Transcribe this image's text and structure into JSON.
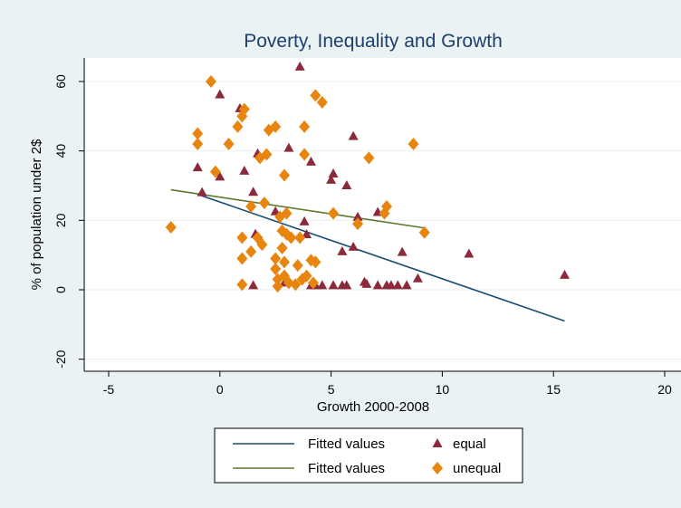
{
  "chart_data": {
    "type": "scatter",
    "title": "Poverty, Inequality and Growth",
    "xlabel": "Growth 2000-2008",
    "ylabel": "% of population under 2$",
    "xlim": [
      -5,
      20
    ],
    "ylim": [
      -20,
      65
    ],
    "xticks": [
      -5,
      0,
      5,
      10,
      15,
      20
    ],
    "yticks": [
      -20,
      0,
      20,
      40,
      60
    ],
    "grid": "horizontal",
    "legend_position": "bottom",
    "colors": {
      "background": "#eaf2f3",
      "plot_area": "#ffffff",
      "equal": "#8c2a3b",
      "unequal": "#e8850f",
      "fit_equal": "#1b4d72",
      "fit_unequal": "#5e7a2a"
    },
    "legend": [
      {
        "label": "Fitted values",
        "kind": "line",
        "series": "fit_equal"
      },
      {
        "label": "equal",
        "kind": "triangle",
        "series": "equal"
      },
      {
        "label": "Fitted values",
        "kind": "line",
        "series": "fit_unequal"
      },
      {
        "label": "unequal",
        "kind": "diamond",
        "series": "unequal"
      }
    ],
    "series": [
      {
        "name": "equal",
        "marker": "triangle",
        "points": [
          [
            -1.0,
            35.2
          ],
          [
            -0.8,
            28.0
          ],
          [
            0.0,
            56.2
          ],
          [
            0.0,
            32.5
          ],
          [
            0.9,
            52.2
          ],
          [
            1.1,
            34.2
          ],
          [
            1.5,
            28.1
          ],
          [
            1.6,
            16.0
          ],
          [
            1.7,
            39.2
          ],
          [
            1.5,
            1.2
          ],
          [
            2.5,
            22.5
          ],
          [
            2.9,
            2.0
          ],
          [
            3.1,
            40.8
          ],
          [
            3.6,
            64.2
          ],
          [
            3.8,
            19.6
          ],
          [
            3.9,
            15.9
          ],
          [
            4.1,
            36.8
          ],
          [
            4.1,
            1.2
          ],
          [
            4.3,
            1.2
          ],
          [
            4.6,
            1.2
          ],
          [
            5.0,
            31.6
          ],
          [
            5.1,
            33.4
          ],
          [
            5.1,
            1.2
          ],
          [
            5.5,
            1.2
          ],
          [
            5.5,
            11.0
          ],
          [
            5.7,
            30.0
          ],
          [
            5.7,
            1.2
          ],
          [
            6.0,
            44.2
          ],
          [
            6.0,
            12.3
          ],
          [
            6.2,
            20.9
          ],
          [
            6.5,
            2.2
          ],
          [
            6.6,
            1.6
          ],
          [
            7.1,
            22.3
          ],
          [
            7.1,
            1.2
          ],
          [
            7.5,
            1.2
          ],
          [
            7.7,
            1.2
          ],
          [
            8.0,
            1.2
          ],
          [
            8.2,
            10.8
          ],
          [
            8.4,
            1.2
          ],
          [
            8.9,
            3.2
          ],
          [
            11.2,
            10.3
          ],
          [
            15.5,
            4.2
          ]
        ]
      },
      {
        "name": "unequal",
        "marker": "diamond",
        "points": [
          [
            -2.2,
            18.0
          ],
          [
            -1.0,
            42.0
          ],
          [
            -1.0,
            45.0
          ],
          [
            -0.4,
            60.0
          ],
          [
            -0.2,
            34.0
          ],
          [
            0.4,
            42.0
          ],
          [
            0.8,
            47.0
          ],
          [
            1.0,
            50.0
          ],
          [
            1.1,
            52.0
          ],
          [
            1.0,
            15.0
          ],
          [
            1.0,
            9.0
          ],
          [
            1.0,
            1.5
          ],
          [
            1.4,
            24.0
          ],
          [
            1.4,
            11.0
          ],
          [
            1.7,
            15.0
          ],
          [
            1.8,
            38.0
          ],
          [
            1.9,
            13.0
          ],
          [
            2.0,
            25.0
          ],
          [
            2.1,
            39.0
          ],
          [
            2.2,
            46.0
          ],
          [
            2.5,
            47.0
          ],
          [
            2.5,
            9.0
          ],
          [
            2.5,
            6.0
          ],
          [
            2.6,
            3.0
          ],
          [
            2.6,
            1.0
          ],
          [
            2.7,
            21.0
          ],
          [
            2.8,
            17.0
          ],
          [
            2.8,
            12.0
          ],
          [
            2.9,
            33.0
          ],
          [
            2.9,
            8.0
          ],
          [
            2.9,
            4.0
          ],
          [
            3.0,
            22.0
          ],
          [
            3.0,
            16.0
          ],
          [
            3.1,
            2.0
          ],
          [
            3.2,
            15.0
          ],
          [
            3.4,
            1.5
          ],
          [
            3.5,
            7.0
          ],
          [
            3.6,
            15.0
          ],
          [
            3.7,
            3.0
          ],
          [
            3.8,
            47.0
          ],
          [
            3.8,
            39.0
          ],
          [
            3.9,
            4.0
          ],
          [
            4.1,
            8.5
          ],
          [
            4.2,
            2.0
          ],
          [
            4.3,
            56.0
          ],
          [
            4.3,
            8.0
          ],
          [
            4.6,
            54.0
          ],
          [
            5.1,
            22.0
          ],
          [
            6.2,
            19.0
          ],
          [
            6.7,
            38.0
          ],
          [
            7.4,
            22.0
          ],
          [
            7.5,
            24.0
          ],
          [
            8.7,
            42.0
          ],
          [
            9.2,
            16.5
          ]
        ]
      },
      {
        "name": "fit_equal",
        "type": "line",
        "points": [
          [
            -1.0,
            27.5
          ],
          [
            15.5,
            -9.0
          ]
        ]
      },
      {
        "name": "fit_unequal",
        "type": "line",
        "points": [
          [
            -2.2,
            28.8
          ],
          [
            9.2,
            17.8
          ]
        ]
      }
    ]
  }
}
